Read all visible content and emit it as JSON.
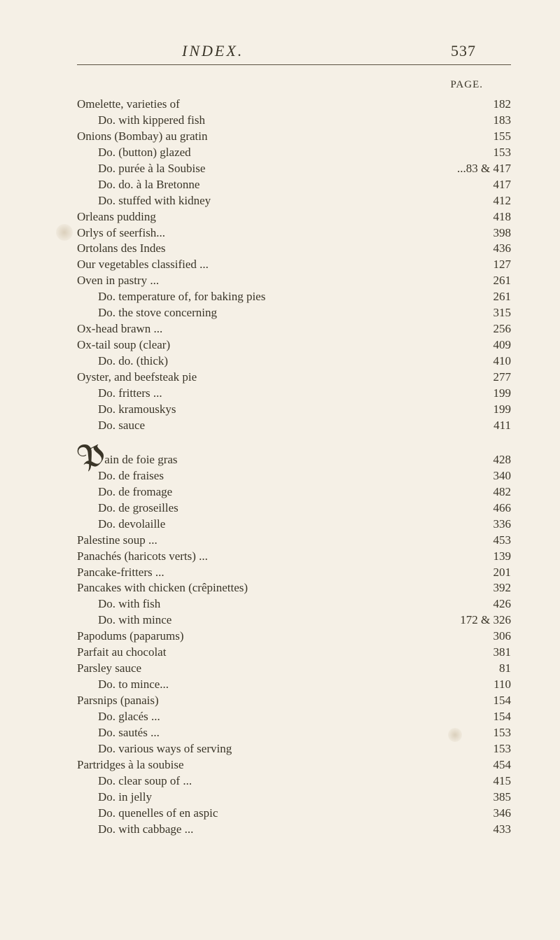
{
  "background_color": "#f5f0e6",
  "text_color": "#3a3528",
  "font_family": "Times New Roman",
  "header": {
    "title": "INDEX.",
    "page_number": "537",
    "page_label": "PAGE."
  },
  "entries_block1": [
    {
      "text": "Omelette, varieties of",
      "page": "182",
      "indent": 0
    },
    {
      "text": "Do. with kippered fish",
      "page": "183",
      "indent": 1
    },
    {
      "text": "Onions (Bombay) au gratin",
      "page": "155",
      "indent": 0
    },
    {
      "text": "Do. (button) glazed",
      "page": "153",
      "indent": 1
    },
    {
      "text": "Do. purée à la Soubise",
      "page": "...83 & 417",
      "indent": 1
    },
    {
      "text": "Do. do. à la Bretonne",
      "page": "417",
      "indent": 1
    },
    {
      "text": "Do. stuffed with kidney",
      "page": "412",
      "indent": 1
    },
    {
      "text": "Orleans pudding",
      "page": "418",
      "indent": 0
    },
    {
      "text": "Orlys of seerfish...",
      "page": "398",
      "indent": 0
    },
    {
      "text": "Ortolans des Indes",
      "page": "436",
      "indent": 0
    },
    {
      "text": "Our vegetables classified ...",
      "page": "127",
      "indent": 0
    },
    {
      "text": "Oven in pastry ...",
      "page": "261",
      "indent": 0
    },
    {
      "text": "Do. temperature of, for baking pies",
      "page": "261",
      "indent": 1
    },
    {
      "text": "Do. the stove concerning",
      "page": "315",
      "indent": 1
    },
    {
      "text": "Ox-head brawn ...",
      "page": "256",
      "indent": 0
    },
    {
      "text": "Ox-tail soup (clear)",
      "page": "409",
      "indent": 0
    },
    {
      "text": "Do. do. (thick)",
      "page": "410",
      "indent": 1
    },
    {
      "text": "Oyster, and beefsteak pie",
      "page": "277",
      "indent": 0
    },
    {
      "text": "Do. fritters ...",
      "page": "199",
      "indent": 1
    },
    {
      "text": "Do. kramouskys",
      "page": "199",
      "indent": 1
    },
    {
      "text": "Do. sauce",
      "page": "411",
      "indent": 1
    }
  ],
  "entries_block2": [
    {
      "text": "ain de foie gras",
      "page": "428",
      "indent": 0,
      "dropcap": "P"
    },
    {
      "text": "Do. de fraises",
      "page": "340",
      "indent": 1
    },
    {
      "text": "Do. de fromage",
      "page": "482",
      "indent": 1
    },
    {
      "text": "Do. de groseilles",
      "page": "466",
      "indent": 1
    },
    {
      "text": "Do. devolaille",
      "page": "336",
      "indent": 1
    },
    {
      "text": "Palestine soup ...",
      "page": "453",
      "indent": 0
    },
    {
      "text": "Panachés (haricots verts) ...",
      "page": "139",
      "indent": 0
    },
    {
      "text": "Pancake-fritters ...",
      "page": "201",
      "indent": 0
    },
    {
      "text": "Pancakes with chicken (crêpinettes)",
      "page": "392",
      "indent": 0
    },
    {
      "text": "Do. with fish",
      "page": "426",
      "indent": 1
    },
    {
      "text": "Do. with mince",
      "page": "172 & 326",
      "indent": 1
    },
    {
      "text": "Papodums (paparums)",
      "page": "306",
      "indent": 0
    },
    {
      "text": "Parfait au chocolat",
      "page": "381",
      "indent": 0
    },
    {
      "text": "Parsley sauce",
      "page": "81",
      "indent": 0
    },
    {
      "text": "Do. to mince...",
      "page": "110",
      "indent": 1
    },
    {
      "text": "Parsnips (panais)",
      "page": "154",
      "indent": 0
    },
    {
      "text": "Do. glacés ...",
      "page": "154",
      "indent": 1
    },
    {
      "text": "Do. sautés ...",
      "page": "153",
      "indent": 1
    },
    {
      "text": "Do. various ways of serving",
      "page": "153",
      "indent": 1
    },
    {
      "text": "Partridges à la soubise",
      "page": "454",
      "indent": 0
    },
    {
      "text": "Do. clear soup of ...",
      "page": "415",
      "indent": 1
    },
    {
      "text": "Do. in jelly",
      "page": "385",
      "indent": 1
    },
    {
      "text": "Do. quenelles of en aspic",
      "page": "346",
      "indent": 1
    },
    {
      "text": "Do. with cabbage ...",
      "page": "433",
      "indent": 1
    }
  ]
}
